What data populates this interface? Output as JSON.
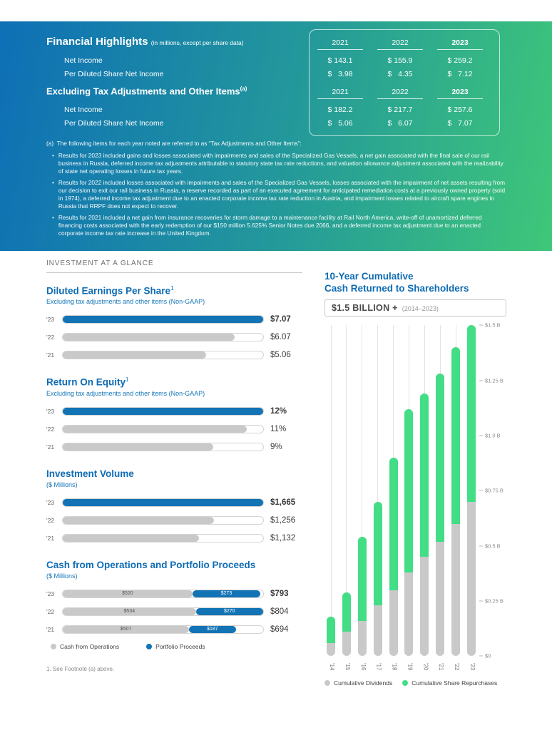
{
  "colors": {
    "blue": "#1273B5",
    "gray": "#C9C9C9",
    "green": "#43DD86",
    "heading_blue": "#0E6CB4"
  },
  "hero": {
    "financial_highlights": {
      "title": "Financial Highlights",
      "subtitle": "(in millions, except per share data)",
      "years": [
        "2021",
        "2022",
        "2023"
      ],
      "rows": [
        {
          "label": "Net Income",
          "values": [
            "$ 143.1",
            "$ 155.9",
            "$ 259.2"
          ]
        },
        {
          "label": "Per Diluted Share Net Income",
          "values": [
            "$   3.98",
            "$   4.35",
            "$   7.12"
          ]
        }
      ]
    },
    "excluding": {
      "title": "Excluding Tax Adjustments and Other Items",
      "title_sup": "(a)",
      "years": [
        "2021",
        "2022",
        "2023"
      ],
      "rows": [
        {
          "label": "Net Income",
          "values": [
            "$ 182.2",
            "$ 217.7",
            "$ 257.6"
          ]
        },
        {
          "label": "Per Diluted Share Net Income",
          "values": [
            "$   5.06",
            "$   6.07",
            "$   7.07"
          ]
        }
      ]
    },
    "footnote_intro": "(a)  The following items for each year noted are referred to as “Tax Adjustments and Other Items”:",
    "footnotes": [
      "Results for 2023 included gains and losses associated with impairments and sales of the Specialized Gas Vessels, a net gain associated with the final sale of our rail business in Russia, deferred income tax adjustments attributable to statutory state tax rate reductions, and valuation allowance adjustment associated with the realizability of state net operating losses in future tax years.",
      "Results for 2022 included losses associated with impairments and sales of the Specialized Gas Vessels, losses associated with the impairment of net assets resulting from our decision to exit our rail business in Russia, a reserve recorded as part of an executed agreement for anticipated remediation costs at a previously owned property (sold in 1974), a deferred income tax adjustment due to an enacted corporate income tax rate reduction in Austria, and impairment losses related to aircraft spare engines in Russia that RRPF does not expect to recover.",
      "Results for 2021 included a net gain from insurance recoveries for storm damage to a maintenance facility at Rail North America, write-off of unamortized deferred financing costs associated with the early redemption of our $150 million 5.625% Senior Notes due 2066, and a deferred income tax adjustment due to an enacted corporate income tax rate increase in the United Kingdom."
    ]
  },
  "glance": {
    "section_title": "INVESTMENT AT A GLANCE",
    "footnote": "1. See Footnote (a) above."
  },
  "chart_data": [
    {
      "type": "bar",
      "title": "Diluted Earnings Per Share",
      "title_sup": "1",
      "subtitle": "Excluding tax adjustments and other items (Non-GAAP)",
      "categories": [
        "'23",
        "'22",
        "'21"
      ],
      "values": [
        7.07,
        6.07,
        5.06
      ],
      "value_labels": [
        "$7.07",
        "$6.07",
        "$5.06"
      ],
      "max": 7.07,
      "bar_colors": [
        "#1273B5",
        "#C9C9C9",
        "#C9C9C9"
      ]
    },
    {
      "type": "bar",
      "title": "Return On Equity",
      "title_sup": "1",
      "subtitle": "Excluding tax adjustments and other items (Non-GAAP)",
      "categories": [
        "'23",
        "'22",
        "'21"
      ],
      "values": [
        12,
        11,
        9
      ],
      "value_labels": [
        "12%",
        "11%",
        "9%"
      ],
      "max": 12,
      "bar_colors": [
        "#1273B5",
        "#C9C9C9",
        "#C9C9C9"
      ]
    },
    {
      "type": "bar",
      "title": "Investment Volume",
      "subtitle": "($ Millions)",
      "categories": [
        "'23",
        "'22",
        "'21"
      ],
      "values": [
        1665,
        1256,
        1132
      ],
      "value_labels": [
        "$1,665",
        "$1,256",
        "$1,132"
      ],
      "max": 1665,
      "bar_colors": [
        "#1273B5",
        "#C9C9C9",
        "#C9C9C9"
      ]
    },
    {
      "type": "stacked-bar",
      "title": "Cash from Operations and Portfolio Proceeds",
      "subtitle": "($ Millions)",
      "categories": [
        "'23",
        "'22",
        "'21"
      ],
      "series": [
        {
          "name": "Cash from Operations",
          "color": "#C9C9C9",
          "values": [
            520,
            534,
            507
          ]
        },
        {
          "name": "Portfolio Proceeds",
          "color": "#1273B5",
          "values": [
            273,
            270,
            187
          ]
        }
      ],
      "segment_labels": [
        [
          "$520",
          "$273"
        ],
        [
          "$534",
          "$270"
        ],
        [
          "$507",
          "$187"
        ]
      ],
      "totals": [
        "$793",
        "$804",
        "$694"
      ],
      "max": 804,
      "legend": [
        "Cash from Operations",
        "Portfolio Proceeds"
      ]
    },
    {
      "type": "stacked-column",
      "title_line1": "10-Year Cumulative",
      "title_line2": "Cash Returned to Shareholders",
      "badge": "$1.5 BILLION +",
      "badge_note": "(2014–2023)",
      "categories": [
        "'14",
        "'15",
        "'16",
        "'17",
        "'18",
        "'19",
        "'20",
        "'21",
        "'22",
        "'23"
      ],
      "series": [
        {
          "name": "Cumulative Dividends",
          "color": "#C9C9C9",
          "values": [
            0.06,
            0.11,
            0.16,
            0.23,
            0.3,
            0.38,
            0.45,
            0.52,
            0.6,
            0.7
          ]
        },
        {
          "name": "Cumulative Share Repurchases",
          "color": "#43DD86",
          "values": [
            0.12,
            0.18,
            0.38,
            0.47,
            0.6,
            0.74,
            0.74,
            0.76,
            0.8,
            0.8
          ]
        }
      ],
      "ylim": [
        0,
        1.5
      ],
      "yticks": [
        {
          "v": 1.5,
          "label": "$1.5 B"
        },
        {
          "v": 1.25,
          "label": "$1.25 B"
        },
        {
          "v": 1.0,
          "label": "$1.0 B"
        },
        {
          "v": 0.75,
          "label": "$0.75 B"
        },
        {
          "v": 0.5,
          "label": "$0.5 B"
        },
        {
          "v": 0.25,
          "label": "$0.25 B"
        },
        {
          "v": 0,
          "label": "$0"
        }
      ],
      "legend": [
        "Cumulative Dividends",
        "Cumulative Share Repurchases"
      ]
    }
  ]
}
